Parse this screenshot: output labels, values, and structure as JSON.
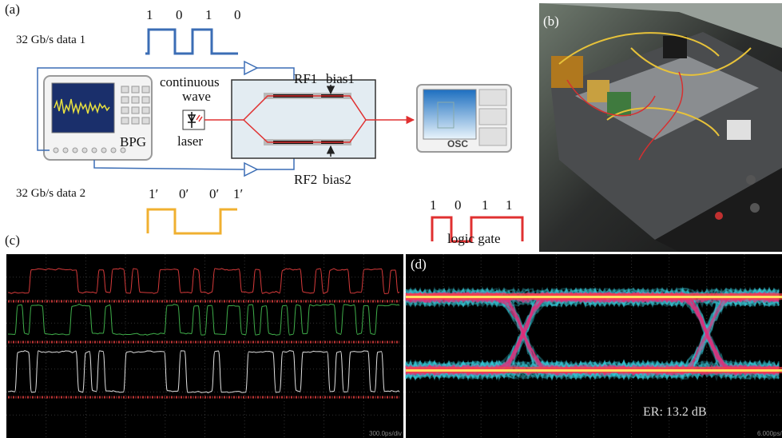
{
  "panel_a": {
    "label": "(a)",
    "data1": {
      "label": "32 Gb/s data 1",
      "bits": [
        "1",
        "0",
        "1",
        "0"
      ]
    },
    "data2": {
      "label": "32 Gb/s data 2",
      "bits": [
        "1′",
        "0′",
        "0′",
        "1′"
      ]
    },
    "source": {
      "line1": "continuous",
      "line2": "wave",
      "laser": "laser"
    },
    "bpg": "BPG",
    "osc": "OSC",
    "rf1": "RF1",
    "rf2": "RF2",
    "bias1": "bias1",
    "bias2": "bias2",
    "output": {
      "bits": [
        "1",
        "0",
        "1",
        "1"
      ],
      "label": "logic gate"
    }
  },
  "panel_b": {
    "label": "(b)"
  },
  "panel_c": {
    "label": "(c)",
    "timebase": "300.0ps/div"
  },
  "panel_d": {
    "label": "(d)",
    "annotation": "ER: 13.2 dB",
    "timebase": "6.000ps/"
  }
}
